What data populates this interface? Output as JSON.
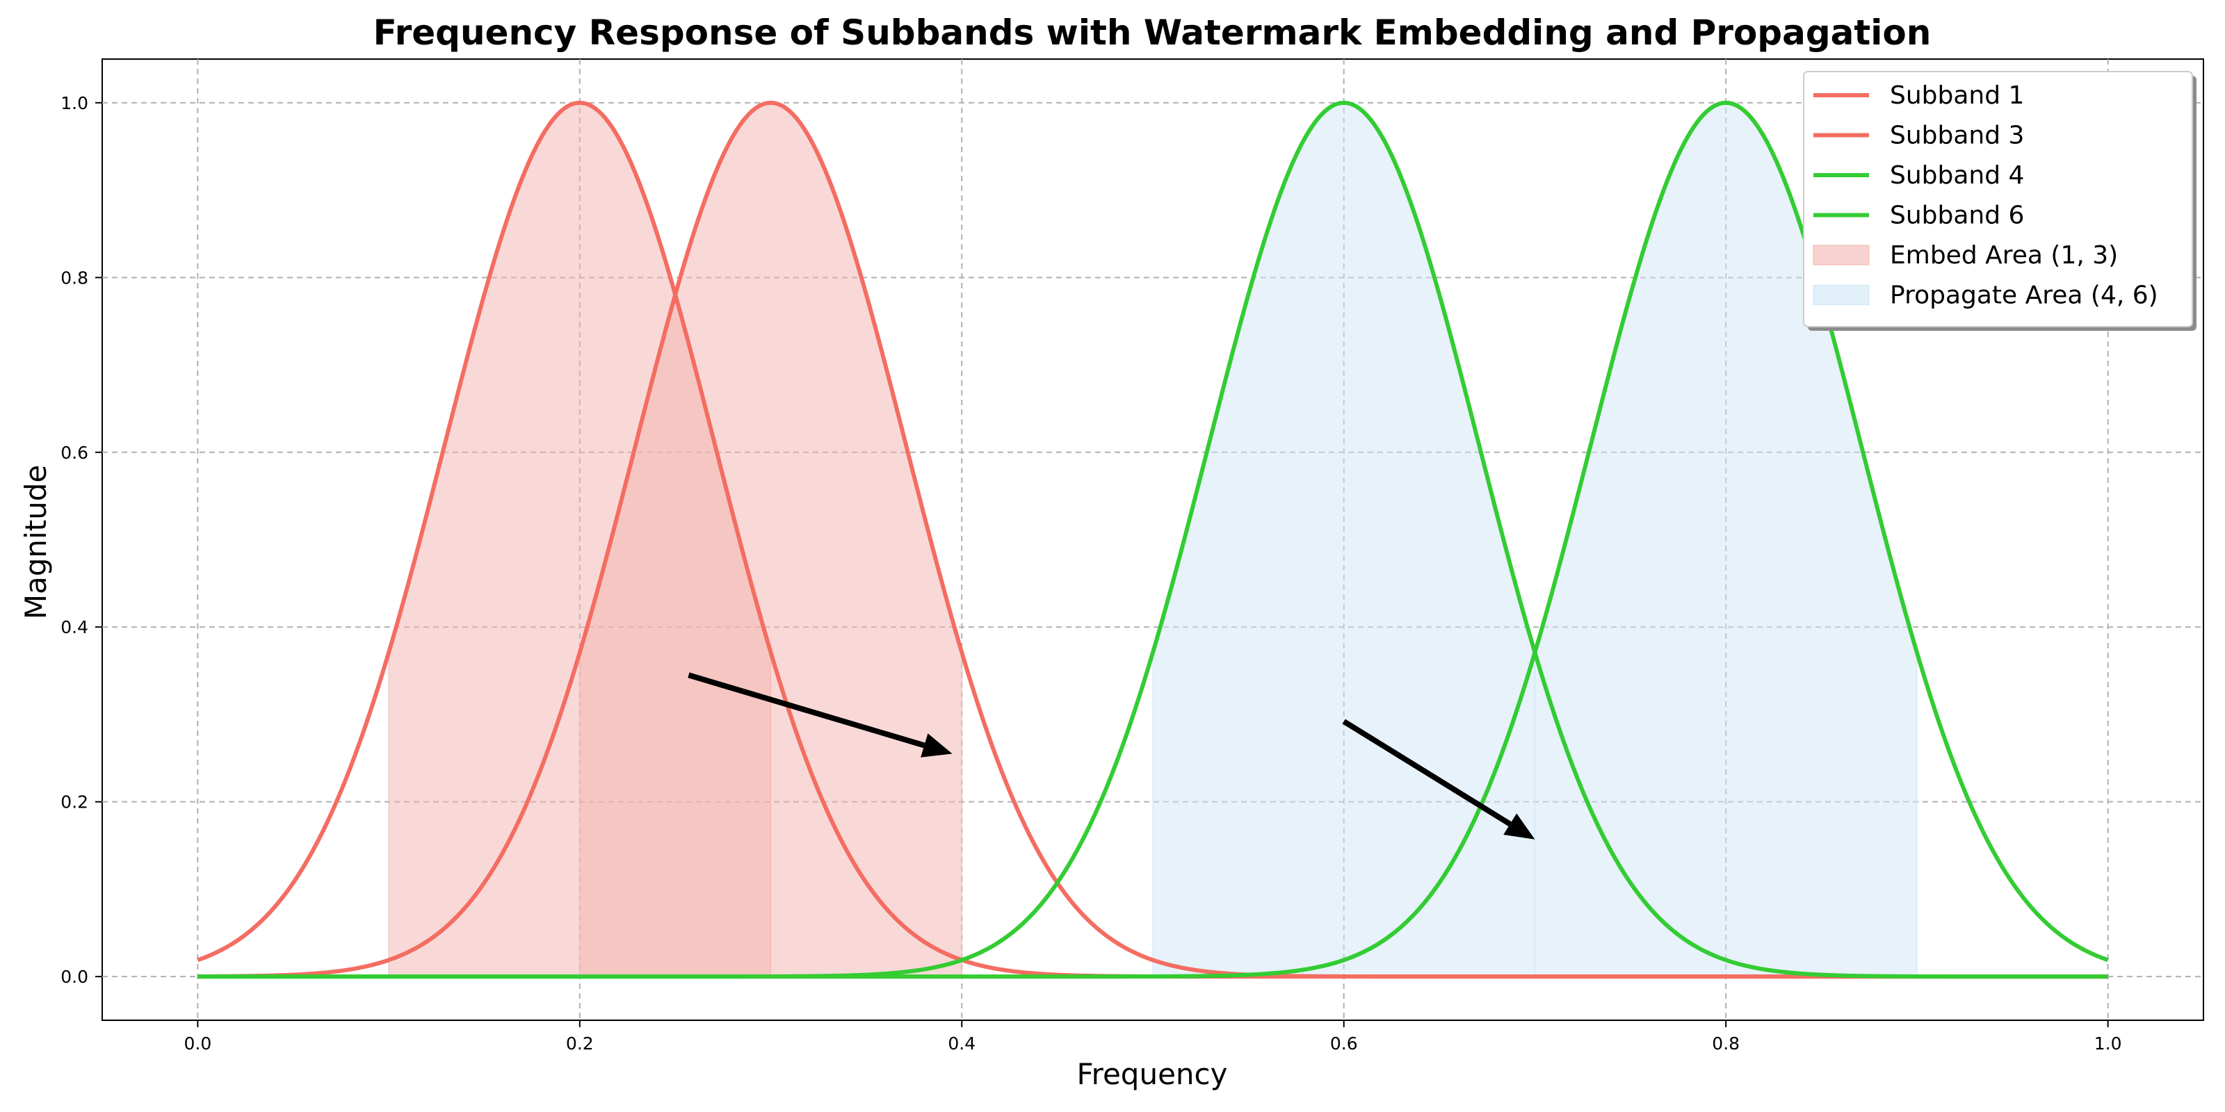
{
  "chart_data": {
    "type": "line",
    "title": "Frequency Response of Subbands with Watermark Embedding and Propagation",
    "xlabel": "Frequency",
    "ylabel": "Magnitude",
    "xlim": [
      -0.05,
      1.05
    ],
    "ylim": [
      -0.05,
      1.05
    ],
    "xticks": [
      0.0,
      0.2,
      0.4,
      0.6,
      0.8,
      1.0
    ],
    "yticks": [
      0.0,
      0.2,
      0.4,
      0.6,
      0.8,
      1.0
    ],
    "grid": true,
    "legend_position": "top-right",
    "series": [
      {
        "name": "Subband 1",
        "center": 0.2,
        "sigma": 0.071,
        "color": "#f46d62"
      },
      {
        "name": "Subband 3",
        "center": 0.3,
        "sigma": 0.071,
        "color": "#f46d62"
      },
      {
        "name": "Subband 4",
        "center": 0.6,
        "sigma": 0.071,
        "color": "#33cc33"
      },
      {
        "name": "Subband 6",
        "center": 0.8,
        "sigma": 0.071,
        "color": "#33cc33"
      }
    ],
    "areas": [
      {
        "name": "Embed Area (1, 3)",
        "color": "#f4b4b0",
        "regions": [
          {
            "series": "Subband 1",
            "x_range": [
              0.1,
              0.3
            ]
          },
          {
            "series": "Subband 3",
            "x_range": [
              0.2,
              0.4
            ]
          }
        ]
      },
      {
        "name": "Propagate Area (4, 6)",
        "color": "#cfe6f5",
        "regions": [
          {
            "series": "Subband 4",
            "x_range": [
              0.5,
              0.7
            ]
          },
          {
            "series": "Subband 6",
            "x_range": [
              0.7,
              0.9
            ]
          }
        ]
      }
    ],
    "annotations": [
      {
        "type": "arrow",
        "from": [
          0.257,
          0.345
        ],
        "to": [
          0.395,
          0.255
        ]
      },
      {
        "type": "arrow",
        "from": [
          0.6,
          0.292
        ],
        "to": [
          0.7,
          0.157
        ]
      }
    ]
  }
}
